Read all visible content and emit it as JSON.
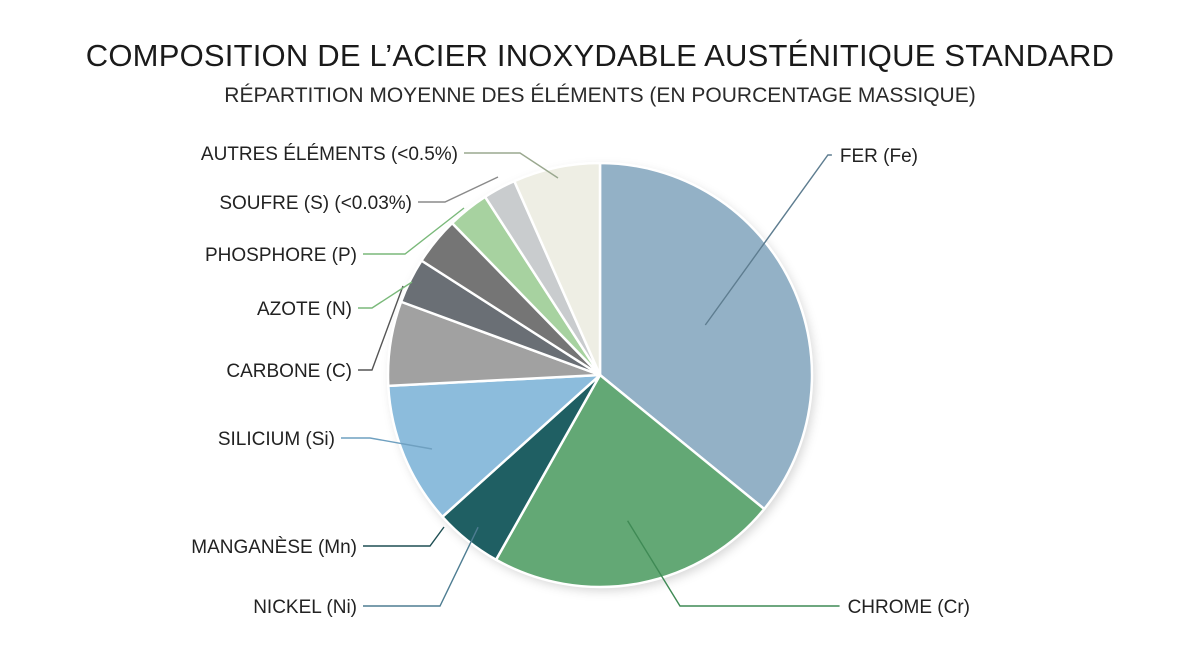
{
  "title": "COMPOSITION DE L’ACIER INOXYDABLE AUSTÉNITIQUE STANDARD",
  "subtitle": "RÉPARTITION MOYENNE DES ÉLÉMENTS (EN POURCENTAGE MASSIQUE)",
  "chart_data": {
    "type": "pie",
    "title": "COMPOSITION DE L’ACIER INOXYDABLE AUSTÉNITIQUE STANDARD",
    "subtitle": "RÉPARTITION MOYENNE DES ÉLÉMENTS (EN POURCENTAGE MASSIQUE)",
    "start_angle_deg": 0,
    "direction": "clockwise",
    "slices": [
      {
        "label": "FER (Fe)",
        "value": 37.4,
        "color": "#93b1c6"
      },
      {
        "label": "CHROME (Cr)",
        "value": 23.2,
        "color": "#63a875"
      },
      {
        "label": "NICKEL (Ni)",
        "value": 5.4,
        "color": "#1f5f63"
      },
      {
        "label": "SILICIUM (Si)",
        "value": 11.3,
        "color": "#8cbcdc"
      },
      {
        "label": "CARBONE (C)",
        "value": 6.7,
        "color": "#a1a1a1"
      },
      {
        "label": "AZOTE (N)",
        "value": 3.6,
        "color": "#6a6f75"
      },
      {
        "label": "PHOSPHORE (P)",
        "value": 3.8,
        "color": "#757575"
      },
      {
        "label": "SOUFRE (S) (<0.03%)",
        "value": 3.3,
        "color": "#a7d2a0"
      },
      {
        "label": "AUTRES ÉLÉMENTS (<0.5%)",
        "value": 2.6,
        "color": "#c9ccce"
      },
      {
        "label": "",
        "value": 6.9,
        "color": "#eeeee4"
      }
    ],
    "labels": [
      {
        "text": "FER (Fe)",
        "side": "right",
        "slice": 0,
        "line_color": "#5e7d90"
      },
      {
        "text": "CHROME (Cr)",
        "side": "right",
        "slice": 1,
        "line_color": "#3f8a55"
      },
      {
        "text": "NICKEL (Ni)",
        "side": "left",
        "slice": 2,
        "line_color": "#4e7d92"
      },
      {
        "text": "MANGANÈSE (Mn)",
        "side": "left",
        "slice": 2,
        "line_color": "#1f4f54"
      },
      {
        "text": "SILICIUM (Si)",
        "side": "left",
        "slice": 3,
        "line_color": "#6fa0c0"
      },
      {
        "text": "CARBONE (C)",
        "side": "left",
        "slice": 5,
        "line_color": "#555555"
      },
      {
        "text": "AZOTE (N)",
        "side": "left",
        "slice": 7,
        "line_color": "#7ab97a"
      },
      {
        "text": "PHOSPHORE (P)",
        "side": "left",
        "slice": 7,
        "line_color": "#7ab97a"
      },
      {
        "text": "SOUFRE (S) (<0.03%)",
        "side": "left",
        "slice": 8,
        "line_color": "#8a8a8a"
      },
      {
        "text": "AUTRES ÉLÉMENTS (<0.5%)",
        "side": "left",
        "slice": 9,
        "line_color": "#9aa88f"
      }
    ]
  }
}
